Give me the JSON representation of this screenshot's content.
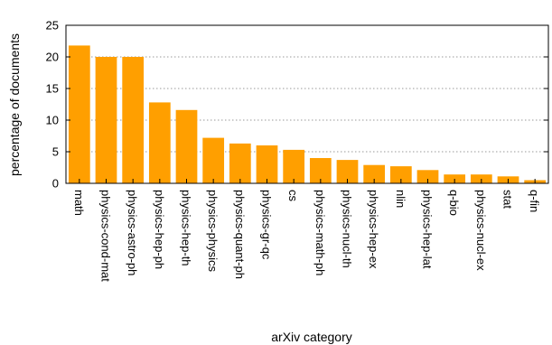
{
  "chart_data": {
    "type": "bar",
    "title": "",
    "xlabel": "arXiv category",
    "ylabel": "percentage of documents",
    "ylim": [
      0,
      25
    ],
    "yticks": [
      0,
      5,
      10,
      15,
      20,
      25
    ],
    "grid": "horizontal dotted",
    "bar_color": "#FF9F00",
    "categories": [
      "math",
      "physics-cond-mat",
      "physics-astro-ph",
      "physics-hep-ph",
      "physics-hep-th",
      "physics-physics",
      "physics-quant-ph",
      "physics-gr-qc",
      "cs",
      "physics-math-ph",
      "physics-nucl-th",
      "physics-hep-ex",
      "nlin",
      "physics-hep-lat",
      "q-bio",
      "physics-nucl-ex",
      "stat",
      "q-fin"
    ],
    "values": [
      21.8,
      20.0,
      20.0,
      12.8,
      11.6,
      7.2,
      6.3,
      6.0,
      5.3,
      4.0,
      3.7,
      2.9,
      2.7,
      2.1,
      1.4,
      1.4,
      1.1,
      0.5
    ]
  }
}
